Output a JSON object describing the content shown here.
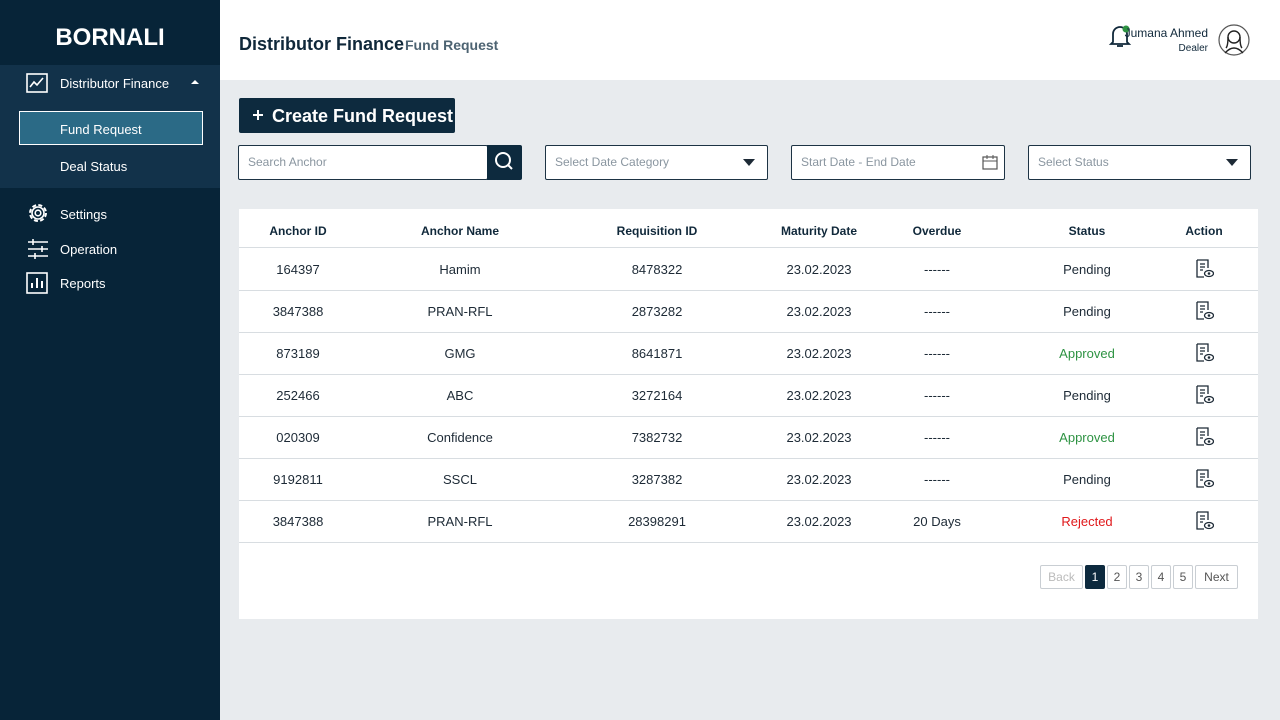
{
  "sidebar": {
    "brand": "BORNALI",
    "menu": [
      {
        "label": "Distributor Finance",
        "children": [
          "Fund Request",
          "Deal Status"
        ]
      },
      {
        "label": "Settings"
      },
      {
        "label": "Operation"
      },
      {
        "label": "Reports"
      }
    ]
  },
  "header": {
    "title": "Distributor Finance",
    "subtitle": "Fund Request",
    "user": {
      "name": "Jumana Ahmed",
      "role": "Dealer"
    }
  },
  "toolbar": {
    "create_button": "Create Fund Request",
    "search_placeholder": "Search Anchor",
    "date_category_placeholder": "Select Date Category",
    "date_range_placeholder": "Start Date - End Date",
    "status_placeholder": "Select Status"
  },
  "table": {
    "columns": [
      "Anchor ID",
      "Anchor Name",
      "Requisition ID",
      "Maturity Date",
      "Overdue",
      "Status",
      "Action"
    ],
    "rows": [
      [
        "164397",
        "Hamim",
        "8478322",
        "23.02.2023",
        "------",
        "Pending"
      ],
      [
        "3847388",
        "PRAN-RFL",
        "2873282",
        "23.02.2023",
        "------",
        "Pending"
      ],
      [
        "873189",
        "GMG",
        "8641871",
        "23.02.2023",
        "------",
        "Approved"
      ],
      [
        "252466",
        "ABC",
        "3272164",
        "23.02.2023",
        "------",
        "Pending"
      ],
      [
        "020309",
        "Confidence",
        "7382732",
        "23.02.2023",
        "------",
        "Approved"
      ],
      [
        "9192811",
        "SSCL",
        "3287382",
        "23.02.2023",
        "------",
        "Pending"
      ],
      [
        "3847388",
        "PRAN-RFL",
        "28398291",
        "23.02.2023",
        "20 Days",
        "Rejected"
      ]
    ],
    "status_colors": {
      "Pending": "#1d2a36",
      "Approved": "#2e9343",
      "Rejected": "#e0181b"
    }
  },
  "pagination": {
    "back": "Back",
    "pages": [
      1,
      2,
      3,
      4,
      5
    ],
    "current": 1,
    "next": "Next"
  }
}
